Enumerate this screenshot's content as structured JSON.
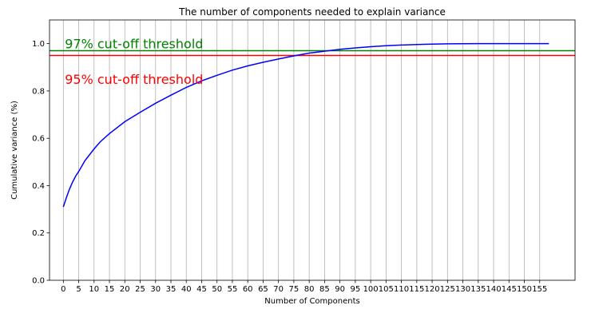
{
  "chart_data": {
    "type": "line",
    "title": "The number of components needed to explain variance",
    "xlabel": "Number of Components",
    "ylabel": "Cumulative variance (%)",
    "xlim": [
      -4.5,
      166.5
    ],
    "ylim": [
      0.0,
      1.1
    ],
    "x_ticks": [
      0,
      5,
      10,
      15,
      20,
      25,
      30,
      35,
      40,
      45,
      50,
      55,
      60,
      65,
      70,
      75,
      80,
      85,
      90,
      95,
      100,
      105,
      110,
      115,
      120,
      125,
      130,
      135,
      140,
      145,
      150,
      155
    ],
    "y_ticks": [
      0.0,
      0.2,
      0.4,
      0.6,
      0.8,
      1.0
    ],
    "y_tick_labels": [
      "0.0",
      "0.2",
      "0.4",
      "0.6",
      "0.8",
      "1.0"
    ],
    "grid": "vertical",
    "series": [
      {
        "color": "#0000ff",
        "x": [
          0,
          1,
          2,
          3,
          4,
          5,
          7,
          10,
          12,
          15,
          20,
          25,
          30,
          35,
          40,
          45,
          50,
          55,
          60,
          65,
          70,
          75,
          80,
          85,
          90,
          95,
          100,
          105,
          110,
          115,
          120,
          125,
          130,
          135,
          140,
          145,
          150,
          155,
          158
        ],
        "y": [
          0.31,
          0.35,
          0.385,
          0.415,
          0.44,
          0.46,
          0.505,
          0.555,
          0.585,
          0.62,
          0.67,
          0.71,
          0.748,
          0.782,
          0.815,
          0.843,
          0.866,
          0.888,
          0.906,
          0.921,
          0.935,
          0.948,
          0.96,
          0.968,
          0.976,
          0.982,
          0.987,
          0.991,
          0.994,
          0.996,
          0.998,
          0.999,
          0.9995,
          1.0,
          1.0,
          1.0,
          1.0,
          1.0,
          1.0
        ]
      }
    ],
    "thresholds": [
      {
        "value": 0.97,
        "label": "97% cut-off threshold",
        "color": "#008000",
        "label_y": 1.0
      },
      {
        "value": 0.95,
        "label": "95% cut-off threshold",
        "color": "#ff0000",
        "label_y": 0.85
      }
    ]
  }
}
